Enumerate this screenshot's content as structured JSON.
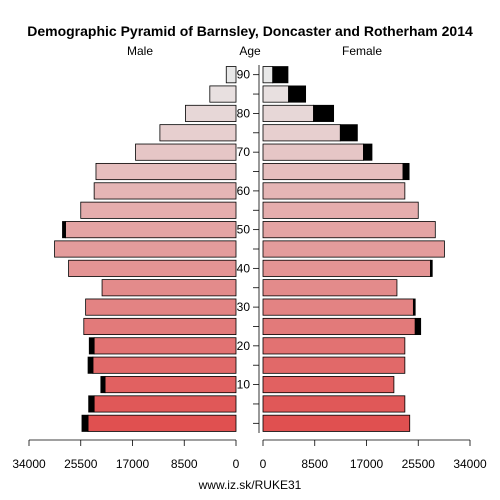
{
  "chart_data": {
    "type": "bar",
    "title": "Demographic Pyramid of Barnsley, Doncaster and Rotherham 2014",
    "left_label": "Male",
    "center_label": "Age",
    "right_label": "Female",
    "footer": "www.iz.sk/RUKE31",
    "xlim": [
      0,
      34000
    ],
    "ticks_left": [
      "34000",
      "25500",
      "17000",
      "8500",
      "0"
    ],
    "tick_values_left": [
      34000,
      25500,
      17000,
      8500,
      0
    ],
    "ticks_right": [
      "0",
      "8500",
      "17000",
      "25500",
      "34000"
    ],
    "tick_values_right": [
      0,
      8500,
      17000,
      25500,
      34000
    ],
    "age_labels": [
      {
        "label": "10",
        "group_index": 2
      },
      {
        "label": "20",
        "group_index": 4
      },
      {
        "label": "30",
        "group_index": 6
      },
      {
        "label": "40",
        "group_index": 8
      },
      {
        "label": "50",
        "group_index": 10
      },
      {
        "label": "60",
        "group_index": 12
      },
      {
        "label": "70",
        "group_index": 14
      },
      {
        "label": "80",
        "group_index": 16
      },
      {
        "label": "90",
        "group_index": 18
      }
    ],
    "age_groups": [
      "0-4",
      "5-9",
      "10-14",
      "15-19",
      "20-24",
      "25-29",
      "30-34",
      "35-39",
      "40-44",
      "45-49",
      "50-54",
      "55-59",
      "60-64",
      "65-69",
      "70-74",
      "75-79",
      "80-84",
      "85-89",
      "90+"
    ],
    "male": [
      {
        "base": 24300,
        "extra": 1000
      },
      {
        "base": 23300,
        "extra": 900
      },
      {
        "base": 21500,
        "extra": 700
      },
      {
        "base": 23500,
        "extra": 800
      },
      {
        "base": 23300,
        "extra": 800
      },
      {
        "base": 25000,
        "extra": 0
      },
      {
        "base": 24700,
        "extra": 0
      },
      {
        "base": 22000,
        "extra": 0
      },
      {
        "base": 27500,
        "extra": 0
      },
      {
        "base": 29800,
        "extra": 0
      },
      {
        "base": 28000,
        "extra": 500
      },
      {
        "base": 25500,
        "extra": 0
      },
      {
        "base": 23300,
        "extra": 0
      },
      {
        "base": 23000,
        "extra": 0
      },
      {
        "base": 16500,
        "extra": 0
      },
      {
        "base": 12500,
        "extra": 0
      },
      {
        "base": 8300,
        "extra": 0
      },
      {
        "base": 4300,
        "extra": 0
      },
      {
        "base": 1600,
        "extra": 0
      }
    ],
    "female": [
      {
        "base": 24100,
        "extra": 0
      },
      {
        "base": 23300,
        "extra": 0
      },
      {
        "base": 21500,
        "extra": 0
      },
      {
        "base": 23300,
        "extra": 0
      },
      {
        "base": 23300,
        "extra": 0
      },
      {
        "base": 25000,
        "extra": 900
      },
      {
        "base": 24700,
        "extra": 300
      },
      {
        "base": 22000,
        "extra": 0
      },
      {
        "base": 27500,
        "extra": 300
      },
      {
        "base": 29800,
        "extra": 0
      },
      {
        "base": 28300,
        "extra": 0
      },
      {
        "base": 25500,
        "extra": 0
      },
      {
        "base": 23300,
        "extra": 0
      },
      {
        "base": 23000,
        "extra": 1000
      },
      {
        "base": 16500,
        "extra": 1400
      },
      {
        "base": 12700,
        "extra": 2800
      },
      {
        "base": 8300,
        "extra": 3300
      },
      {
        "base": 4200,
        "extra": 2800
      },
      {
        "base": 1600,
        "extra": 2500
      }
    ],
    "colors": {
      "extra_fill": "#000000",
      "outline": "#000000",
      "background": "#ffffff",
      "male_young": "#e05050",
      "male_old": "#e8e8e8",
      "female_young": "#e05050",
      "female_old": "#e8e8e8"
    }
  }
}
